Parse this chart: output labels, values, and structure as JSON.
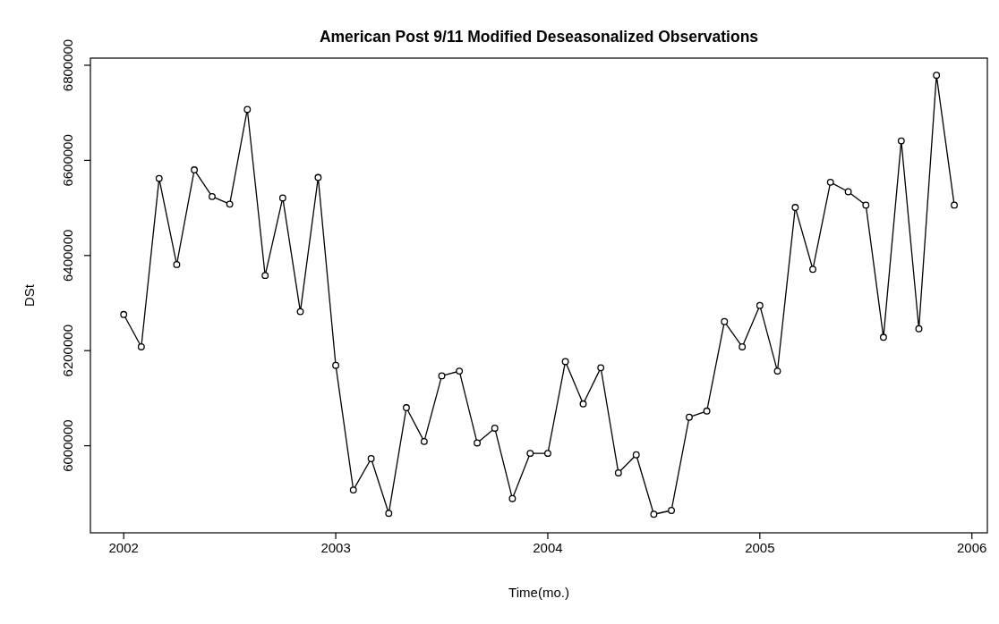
{
  "chart_data": {
    "type": "line",
    "title": "American Post 9/11 Modified Deseasonalized Observations",
    "xlabel": "Time(mo.)",
    "ylabel": "DSt",
    "x": [
      2002,
      2002.083,
      2002.167,
      2002.25,
      2002.333,
      2002.417,
      2002.5,
      2002.583,
      2002.667,
      2002.75,
      2002.833,
      2002.917,
      2003,
      2003.083,
      2003.167,
      2003.25,
      2003.333,
      2003.417,
      2003.5,
      2003.583,
      2003.667,
      2003.75,
      2003.833,
      2003.917,
      2004,
      2004.083,
      2004.167,
      2004.25,
      2004.333,
      2004.417,
      2004.5,
      2004.583,
      2004.667,
      2004.75,
      2004.833,
      2004.917,
      2005,
      2005.083,
      2005.167,
      2005.25,
      2005.333,
      2005.417,
      2005.5,
      2005.583,
      2005.667,
      2005.75,
      2005.833,
      2005.917
    ],
    "series": [
      {
        "color": "#000000",
        "values": [
          6276000,
          6208000,
          6562000,
          6381000,
          6580000,
          6524000,
          6508000,
          6707000,
          6358000,
          6521000,
          6282000,
          6564000,
          6169000,
          5907000,
          5973000,
          5858000,
          6080000,
          6009000,
          6147000,
          6157000,
          6006000,
          6037000,
          5889000,
          5984000,
          5984000,
          6177000,
          6088000,
          6164000,
          5943000,
          5981000,
          5856000,
          5864000,
          6060000,
          6073000,
          6261000,
          6208000,
          6295000,
          6157000,
          6501000,
          6371000,
          6554000,
          6534000,
          6506000,
          6228000,
          6641000,
          6246000,
          6779000,
          6506000
        ]
      }
    ],
    "xlim": [
      2001.843,
      2006.073
    ],
    "ylim": [
      5817000,
      6815000
    ],
    "xticks": [
      2002,
      2003,
      2004,
      2005,
      2006
    ],
    "yticks": [
      6000000,
      6200000,
      6400000,
      6600000,
      6800000
    ],
    "marker": "circle",
    "line_style": "solid",
    "grid": false
  }
}
